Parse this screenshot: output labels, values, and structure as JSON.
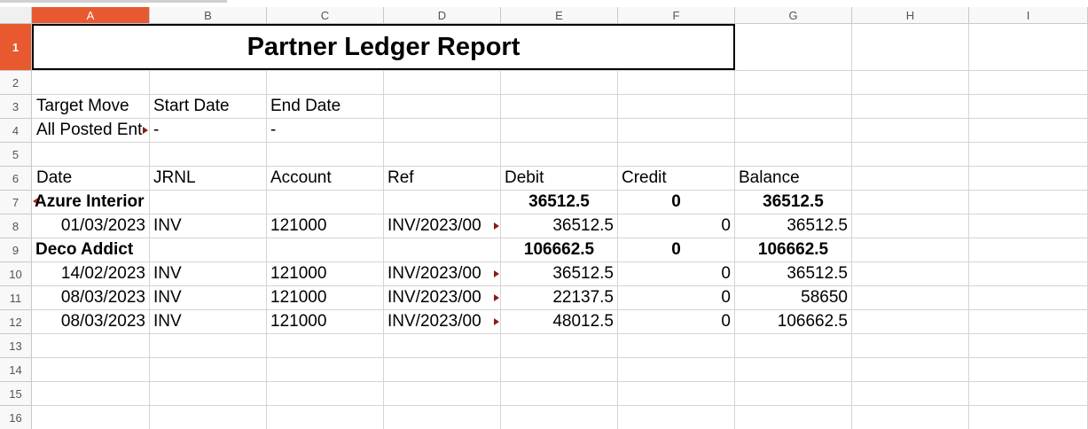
{
  "columns": [
    "A",
    "B",
    "C",
    "D",
    "E",
    "F",
    "G",
    "H",
    "I"
  ],
  "rows": [
    "1",
    "2",
    "3",
    "4",
    "5",
    "6",
    "7",
    "8",
    "9",
    "10",
    "11",
    "12",
    "13",
    "14",
    "15",
    "16"
  ],
  "title": "Partner Ledger Report",
  "filters": {
    "target_move_label": "Target Move",
    "start_date_label": "Start Date",
    "end_date_label": "End Date",
    "target_move_value": "All Posted Entries",
    "start_date_value": "-",
    "end_date_value": "-"
  },
  "headers": {
    "date": "Date",
    "jrnl": "JRNL",
    "account": "Account",
    "ref": "Ref",
    "debit": "Debit",
    "credit": "Credit",
    "balance": "Balance"
  },
  "partners": [
    {
      "name": "Azure Interior",
      "debit": "36512.5",
      "credit": "0",
      "balance": "36512.5",
      "lines": [
        {
          "date": "01/03/2023",
          "jrnl": "INV",
          "account": "121000",
          "ref": "INV/2023/00",
          "debit": "36512.5",
          "credit": "0",
          "balance": "36512.5"
        }
      ]
    },
    {
      "name": "Deco Addict",
      "debit": "106662.5",
      "credit": "0",
      "balance": "106662.5",
      "lines": [
        {
          "date": "14/02/2023",
          "jrnl": "INV",
          "account": "121000",
          "ref": "INV/2023/00",
          "debit": "36512.5",
          "credit": "0",
          "balance": "36512.5"
        },
        {
          "date": "08/03/2023",
          "jrnl": "INV",
          "account": "121000",
          "ref": "INV/2023/00",
          "debit": "22137.5",
          "credit": "0",
          "balance": "58650"
        },
        {
          "date": "08/03/2023",
          "jrnl": "INV",
          "account": "121000",
          "ref": "INV/2023/00",
          "debit": "48012.5",
          "credit": "0",
          "balance": "106662.5"
        }
      ]
    }
  ],
  "colors": {
    "selected_header": "#e8592f",
    "grid": "#d4d4d4"
  }
}
